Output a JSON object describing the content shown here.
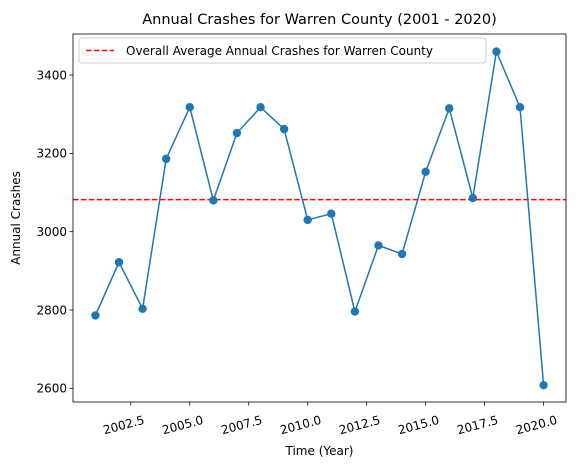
{
  "chart_data": {
    "type": "line",
    "title": "Annual Crashes for Warren County (2001 - 2020)",
    "xlabel": "Time (Year)",
    "ylabel": "Annual Crashes",
    "xlim": [
      2000.05,
      2020.95
    ],
    "ylim": [
      2565,
      3505
    ],
    "xticks": [
      2002.5,
      2005.0,
      2007.5,
      2010.0,
      2012.5,
      2015.0,
      2017.5,
      2020.0
    ],
    "xtick_labels": [
      "2002.5",
      "2005.0",
      "2007.5",
      "2010.0",
      "2012.5",
      "2015.0",
      "2017.5",
      "2020.0"
    ],
    "yticks": [
      2600,
      2800,
      3000,
      3200,
      3400
    ],
    "ytick_labels": [
      "2600",
      "2800",
      "3000",
      "3200",
      "3400"
    ],
    "grid": false,
    "legend_position": "top-center",
    "series": [
      {
        "color": "#1f77b4",
        "marker": "circle",
        "x": [
          2001,
          2002,
          2003,
          2004,
          2005,
          2006,
          2007,
          2008,
          2009,
          2010,
          2011,
          2012,
          2013,
          2014,
          2015,
          2016,
          2017,
          2018,
          2019,
          2020
        ],
        "y": [
          2786,
          2922,
          2803,
          3186,
          3318,
          3080,
          3252,
          3318,
          3262,
          3030,
          3046,
          2796,
          2965,
          2943,
          3153,
          3315,
          3086,
          3460,
          3318,
          2608
        ]
      }
    ],
    "reference_lines": [
      {
        "name": "Overall Average Annual Crashes for Warren County",
        "orientation": "horizontal",
        "value": 3082,
        "color": "#ff0000",
        "style": "dashed"
      }
    ]
  }
}
